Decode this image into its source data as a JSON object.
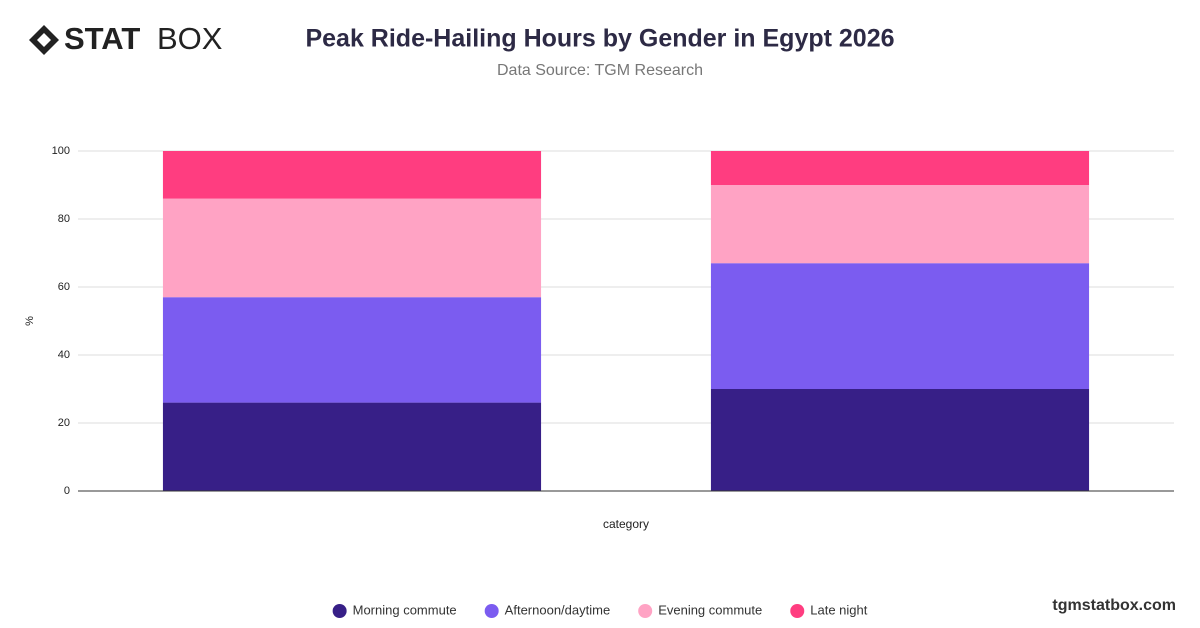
{
  "logo": {
    "bold": "STAT",
    "light": "BOX"
  },
  "footer": "tgmstatbox.com",
  "chart_data": {
    "type": "stacked_bar",
    "title": "Peak Ride-Hailing Hours by Gender in Egypt 2026",
    "subtitle": "Data Source: TGM Research",
    "x_label": "category",
    "y_label": "%",
    "categories": [
      null,
      null
    ],
    "series": [
      {
        "name": "Morning commute",
        "color": "#371f87",
        "values": [
          26,
          30
        ]
      },
      {
        "name": "Afternoon/daytime",
        "color": "#7b5cf0",
        "values": [
          31,
          37
        ]
      },
      {
        "name": "Evening commute",
        "color": "#ffa3c4",
        "values": [
          29,
          23
        ]
      },
      {
        "name": "Late night",
        "color": "#ff3d80",
        "values": [
          14,
          10
        ]
      }
    ],
    "ylim": [
      0,
      100
    ],
    "yticks": [
      0,
      20,
      40,
      60,
      80,
      100
    ],
    "grid": true,
    "legend": "bottom"
  }
}
